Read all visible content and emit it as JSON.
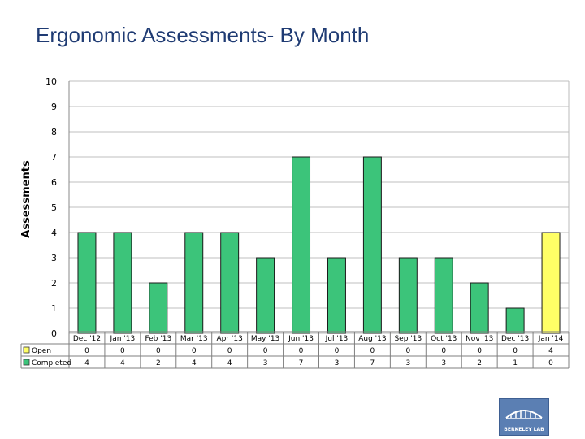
{
  "header": {
    "title": "Ergonomic Assessments- By Month"
  },
  "logo": {
    "text": "BERKELEY LAB",
    "name": "berkeley-lab-logo"
  },
  "colors": {
    "completed": "#3cc47a",
    "highlight": "#ffff66",
    "bar_stroke": "#1a1a1a",
    "grid": "#bfbfbf"
  },
  "chart_data": {
    "type": "bar",
    "title": "Ergonomic Assessments- By Month",
    "ylabel": "Assessments",
    "xlabel": "",
    "ylim": [
      0,
      10
    ],
    "yticks": [
      0,
      1,
      2,
      3,
      4,
      5,
      6,
      7,
      8,
      9,
      10
    ],
    "categories": [
      "Dec '12",
      "Jan '13",
      "Feb '13",
      "Mar '13",
      "Apr '13",
      "May '13",
      "Jun '13",
      "Jul '13",
      "Aug '13",
      "Sep '13",
      "Oct '13",
      "Nov '13",
      "Dec '13",
      "Jan '14"
    ],
    "series": [
      {
        "name": "Open",
        "values": [
          0,
          0,
          0,
          0,
          0,
          0,
          0,
          0,
          0,
          0,
          0,
          0,
          0,
          4
        ]
      },
      {
        "name": "Completed",
        "values": [
          4,
          4,
          2,
          4,
          4,
          3,
          7,
          3,
          7,
          3,
          3,
          2,
          1,
          0
        ]
      }
    ],
    "grid": true,
    "legend": "data-table-left"
  }
}
